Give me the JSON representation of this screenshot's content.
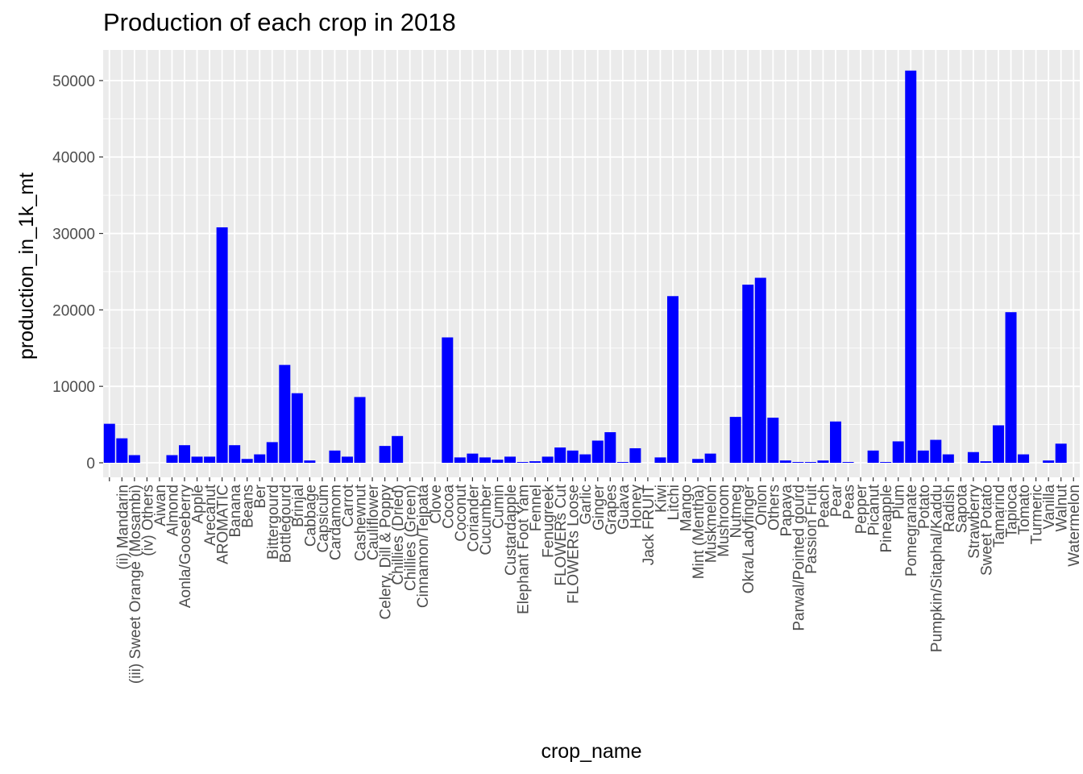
{
  "chart_data": {
    "type": "bar",
    "title": "Production of each crop in 2018",
    "xlabel": "crop_name",
    "ylabel": "production_in_1k_mt",
    "ylim": [
      -1900,
      54000
    ],
    "yticks": [
      0,
      10000,
      20000,
      30000,
      40000,
      50000
    ],
    "bar_color": "#0000ff",
    "panel_background": "#ebebeb",
    "grid_color": "#ffffff",
    "grid": true,
    "categories": [
      "",
      "(ii) Mandarin",
      "(iii) Sweet Orange (Mosambi)",
      "(iv) Others",
      "Aiwan",
      "Almond",
      "Aonla/Gooseberry",
      "Apple",
      "Arecanut",
      "AROMATIC",
      "Banana",
      "Beans",
      "Ber",
      "Bittergourd",
      "Bottlegourd",
      "Brinjal",
      "Cabbage",
      "Capsicum",
      "Cardamom",
      "Carrot",
      "Cashewnut",
      "Cauliflower",
      "Celery, Dill & Poppy",
      "Chillies (Dried)",
      "Chillies (Green)",
      "Cinnamon/Tejpata",
      "Clove",
      "Cocoa",
      "Coconut",
      "Coriander",
      "Cucumber",
      "Cumin",
      "Custardapple",
      "Elephant Foot Yam",
      "Fennel",
      "Fenugreek",
      "FLOWERs Cut",
      "FLOWERs Loose",
      "Garlic",
      "Ginger",
      "Grapes",
      "Guava",
      "Honey",
      "Jack FRUIT",
      "Kiwi",
      "Litchi",
      "Mango",
      "Mint (Mentha)",
      "Muskmelon",
      "Mushroom",
      "Nutmeg",
      "Okra/Ladyfinger",
      "Onion",
      "Others",
      "Papaya",
      "Parwal/Pointed gourd",
      "Passion Fruit",
      "Peach",
      "Pear",
      "Peas",
      "Pepper",
      "Picanut",
      "Pineapple",
      "Plum",
      "Pomegranate",
      "Potato",
      "Pumpkin/Sitaphal/Kaddu",
      "Radish",
      "Sapota",
      "Strawberry",
      "Sweet Potato",
      "Tamarind",
      "Tapioca",
      "Tomato",
      "Turmeric",
      "Vanilla",
      "Walnut",
      "Watermelon"
    ],
    "values": [
      5100,
      3200,
      1000,
      0,
      0,
      1000,
      2300,
      800,
      800,
      30800,
      2300,
      500,
      1100,
      2700,
      12800,
      9100,
      300,
      0,
      1600,
      800,
      8600,
      0,
      2200,
      3500,
      0,
      0,
      0,
      16400,
      700,
      1200,
      700,
      400,
      800,
      100,
      200,
      800,
      2000,
      1600,
      1100,
      2900,
      4000,
      100,
      1900,
      0,
      700,
      21800,
      0,
      500,
      1200,
      0,
      6000,
      23300,
      24200,
      5900,
      300,
      100,
      100,
      300,
      5400,
      100,
      0,
      1600,
      100,
      2800,
      51300,
      1600,
      3000,
      1100,
      0,
      1400,
      200,
      4900,
      19700,
      1100,
      0,
      300,
      2500,
      0
    ]
  }
}
